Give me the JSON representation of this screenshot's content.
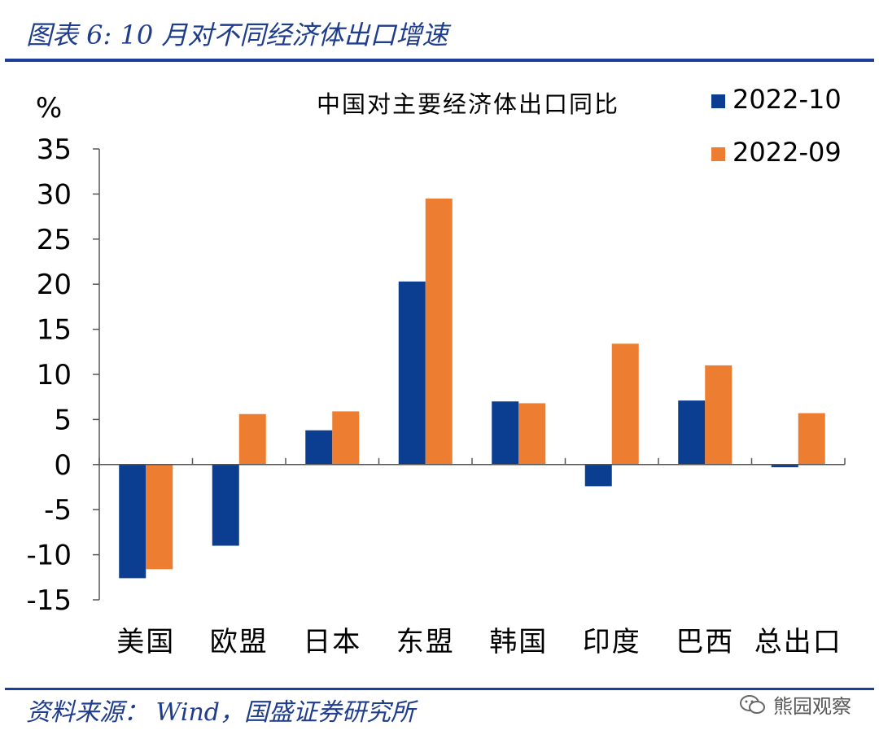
{
  "header": {
    "title": "图表 6:  10 月对不同经济体出口增速"
  },
  "footer": {
    "source": "资料来源： Wind，国盛证券研究所",
    "watermark": "熊园观察"
  },
  "colors": {
    "series_2022_10": "#0b3d91",
    "series_2022_09": "#ed7d31",
    "rule": "#1b3f9a"
  },
  "chart_data": {
    "type": "bar",
    "title": "中国对主要经济体出口同比",
    "ylabel": "%",
    "xlabel": "",
    "ylim": [
      -15,
      35
    ],
    "yticks": [
      35,
      30,
      25,
      20,
      15,
      10,
      5,
      0,
      -5,
      -10,
      -15
    ],
    "categories": [
      "美国",
      "欧盟",
      "日本",
      "东盟",
      "韩国",
      "印度",
      "巴西",
      "总出口"
    ],
    "series": [
      {
        "name": "2022-10",
        "color": "#0b3d91",
        "values": [
          -12.6,
          -9.0,
          3.8,
          20.3,
          7.0,
          -2.4,
          7.1,
          -0.3
        ]
      },
      {
        "name": "2022-09",
        "color": "#ed7d31",
        "values": [
          -11.6,
          5.6,
          5.9,
          29.5,
          6.8,
          13.4,
          11.0,
          5.7
        ]
      }
    ],
    "grid": false,
    "legend": "top-right"
  }
}
